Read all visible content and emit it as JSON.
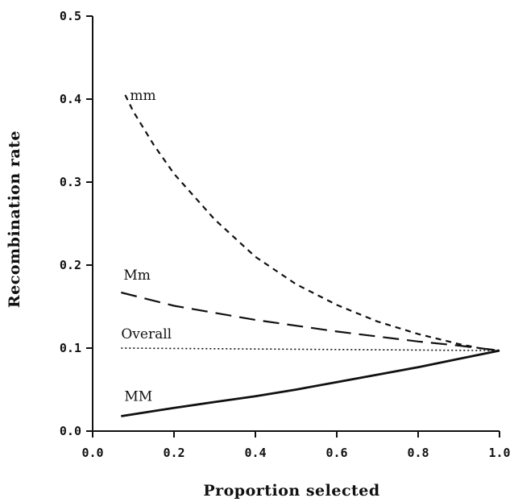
{
  "chart_data": {
    "type": "line",
    "xlabel": "Proportion selected",
    "ylabel": "Recombination rate",
    "xlim": [
      0.0,
      1.0
    ],
    "ylim": [
      0.0,
      0.5
    ],
    "x_ticks": [
      "0.0",
      "0.2",
      "0.4",
      "0.6",
      "0.8",
      "1.0"
    ],
    "y_ticks": [
      "0.0",
      "0.1",
      "0.2",
      "0.3",
      "0.4",
      "0.5"
    ],
    "grid": false,
    "series": [
      {
        "name": "mm",
        "style": "short-dash",
        "color": "#111111",
        "x": [
          0.08,
          0.1,
          0.15,
          0.2,
          0.3,
          0.4,
          0.5,
          0.6,
          0.7,
          0.8,
          0.9,
          0.95,
          1.0
        ],
        "y": [
          0.405,
          0.385,
          0.345,
          0.31,
          0.255,
          0.21,
          0.177,
          0.152,
          0.132,
          0.117,
          0.105,
          0.1,
          0.097
        ]
      },
      {
        "name": "Mm",
        "style": "long-dash",
        "color": "#111111",
        "x": [
          0.07,
          0.2,
          0.4,
          0.6,
          0.8,
          0.9,
          1.0
        ],
        "y": [
          0.167,
          0.151,
          0.134,
          0.12,
          0.108,
          0.103,
          0.097
        ]
      },
      {
        "name": "Overall",
        "style": "dotted",
        "color": "#111111",
        "x": [
          0.07,
          1.0
        ],
        "y": [
          0.1,
          0.097
        ]
      },
      {
        "name": "MM",
        "style": "solid",
        "color": "#111111",
        "x": [
          0.07,
          0.2,
          0.3,
          0.4,
          0.5,
          0.6,
          0.7,
          0.8,
          0.9,
          1.0
        ],
        "y": [
          0.018,
          0.028,
          0.035,
          0.042,
          0.05,
          0.059,
          0.068,
          0.077,
          0.087,
          0.097
        ]
      }
    ]
  }
}
